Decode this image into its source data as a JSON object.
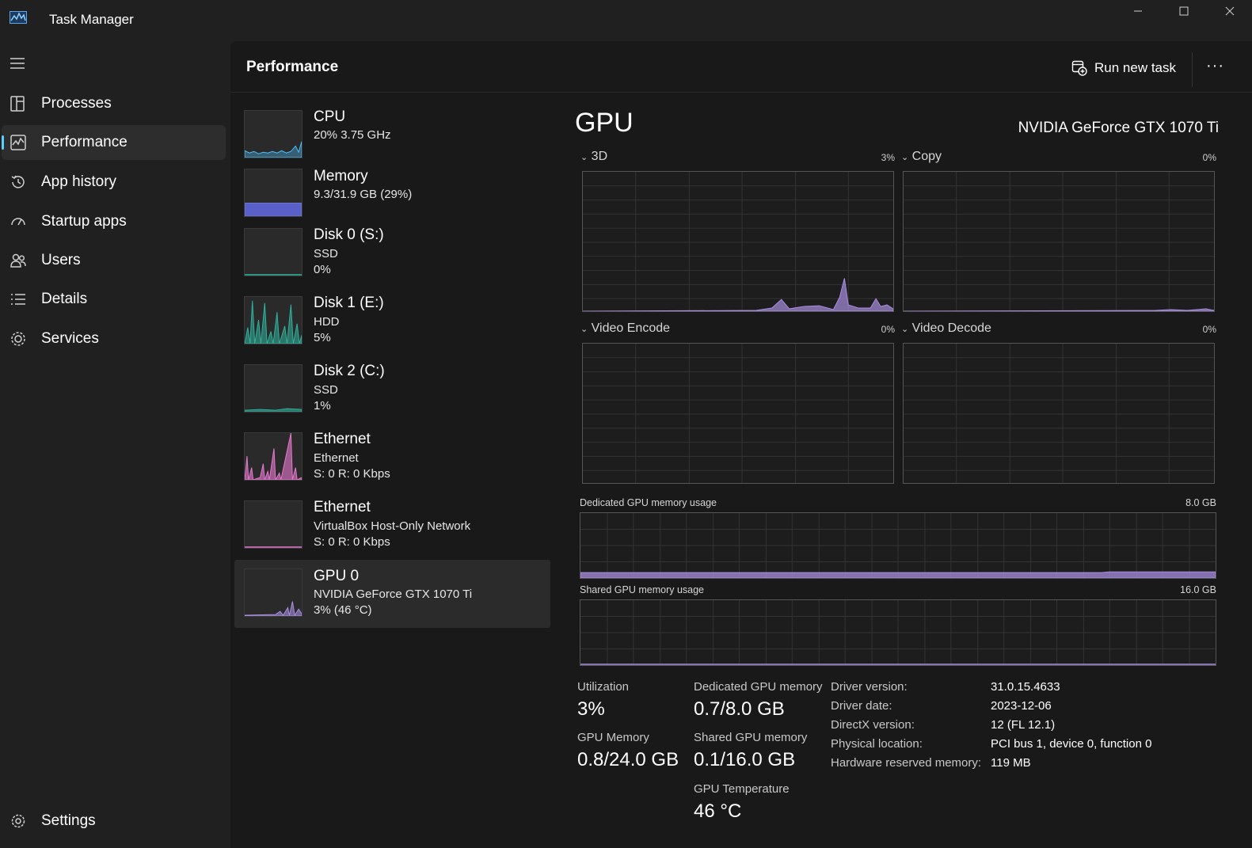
{
  "window": {
    "title": "Task Manager"
  },
  "sidebar": {
    "items": [
      {
        "label": "Processes",
        "icon": "processes-icon"
      },
      {
        "label": "Performance",
        "icon": "performance-icon",
        "active": true
      },
      {
        "label": "App history",
        "icon": "history-icon"
      },
      {
        "label": "Startup apps",
        "icon": "startup-icon"
      },
      {
        "label": "Users",
        "icon": "users-icon"
      },
      {
        "label": "Details",
        "icon": "details-icon"
      },
      {
        "label": "Services",
        "icon": "services-icon"
      }
    ],
    "settings_label": "Settings"
  },
  "header": {
    "title": "Performance",
    "run_task_label": "Run new task",
    "more_label": "···"
  },
  "devices": [
    {
      "name": "CPU",
      "line1": "20%  3.75 GHz",
      "line2": "",
      "color": "#4cc2ff"
    },
    {
      "name": "Memory",
      "line1": "9.3/31.9 GB (29%)",
      "line2": "",
      "color": "#7479d8"
    },
    {
      "name": "Disk 0 (S:)",
      "line1": "SSD",
      "line2": "0%",
      "color": "#2fb39e"
    },
    {
      "name": "Disk 1 (E:)",
      "line1": "HDD",
      "line2": "5%",
      "color": "#2fb39e"
    },
    {
      "name": "Disk 2 (C:)",
      "line1": "SSD",
      "line2": "1%",
      "color": "#2fb39e"
    },
    {
      "name": "Ethernet",
      "line1": "Ethernet",
      "line2": "S: 0 R: 0 Kbps",
      "color": "#e77ad0"
    },
    {
      "name": "Ethernet",
      "line1": "VirtualBox Host-Only Network",
      "line2": "S: 0 R: 0 Kbps",
      "color": "#e77ad0"
    },
    {
      "name": "GPU 0",
      "line1": "NVIDIA GeForce GTX 1070 Ti",
      "line2": "3%  (46 °C)",
      "color": "#a98ee0",
      "selected": true
    }
  ],
  "detail": {
    "title": "GPU",
    "model": "NVIDIA GeForce GTX 1070 Ti",
    "engines": [
      {
        "label": "3D",
        "percent": "3%"
      },
      {
        "label": "Copy",
        "percent": "0%"
      },
      {
        "label": "Video Encode",
        "percent": "0%"
      },
      {
        "label": "Video Decode",
        "percent": "0%"
      }
    ],
    "dedicated_graph": {
      "label": "Dedicated GPU memory usage",
      "max": "8.0 GB"
    },
    "shared_graph": {
      "label": "Shared GPU memory usage",
      "max": "16.0 GB"
    },
    "stats": {
      "utilization_label": "Utilization",
      "utilization": "3%",
      "dedicated_label": "Dedicated GPU memory",
      "dedicated": "0.7/8.0 GB",
      "gpu_memory_label": "GPU Memory",
      "gpu_memory": "0.8/24.0 GB",
      "shared_label": "Shared GPU memory",
      "shared": "0.1/16.0 GB",
      "temperature_label": "GPU Temperature",
      "temperature": "46 °C"
    },
    "info": [
      {
        "key": "Driver version:",
        "value": "31.0.15.4633"
      },
      {
        "key": "Driver date:",
        "value": "2023-12-06"
      },
      {
        "key": "DirectX version:",
        "value": "12 (FL 12.1)"
      },
      {
        "key": "Physical location:",
        "value": "PCI bus 1, device 0, function 0"
      },
      {
        "key": "Hardware reserved memory:",
        "value": "119 MB"
      }
    ]
  },
  "colors": {
    "accent": "#60cdff",
    "gpu_graph": "#a98ee0",
    "cpu_graph": "#4cc2ff",
    "memory_graph": "#7479d8",
    "disk_graph": "#2fb39e",
    "net_graph": "#e77ad0"
  }
}
